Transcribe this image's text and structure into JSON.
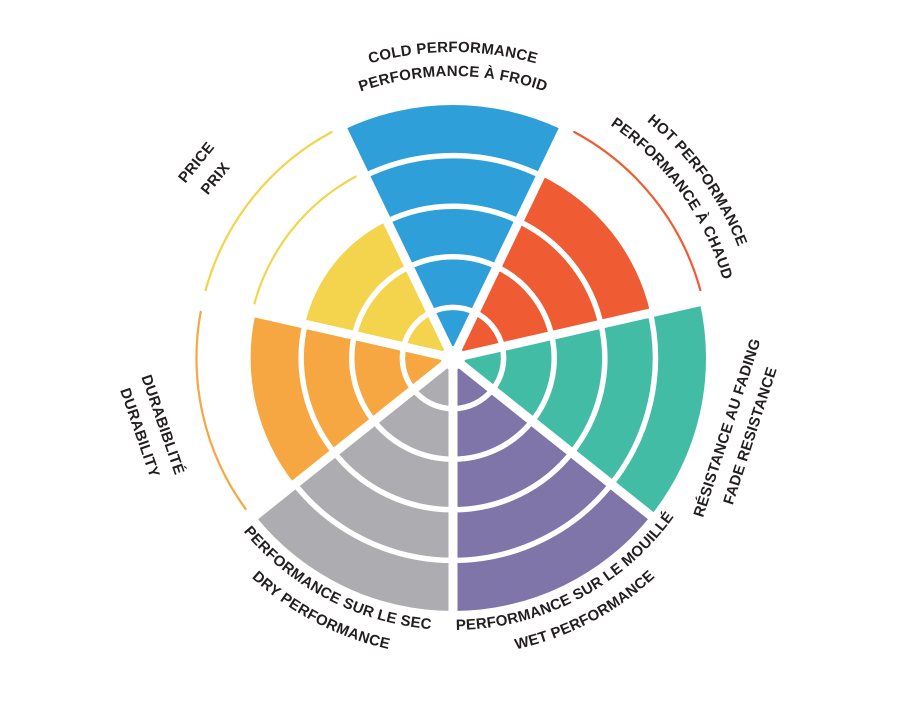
{
  "chart_data": {
    "type": "polar-wheel",
    "max_value": 5,
    "ring_count": 5,
    "background_color": "#FFFFFF",
    "divider_color": "#FFFFFF",
    "text_color": "#231F20",
    "legend_position": "around-wheel",
    "segments": [
      {
        "id": "cold",
        "labels": {
          "en": "COLD PERFORMANCE",
          "fr": "PERFORMANCE À FROID"
        },
        "value": 5,
        "color": "#2E9FD8"
      },
      {
        "id": "hot",
        "labels": {
          "en": "HOT PERFORMANCE",
          "fr": "PERFORMANCE À CHAUD"
        },
        "value": 4,
        "color": "#EF5B33"
      },
      {
        "id": "fade",
        "labels": {
          "en": "FADE RESISTANCE",
          "fr": "RÉSISTANCE AU FADING"
        },
        "value": 5,
        "color": "#43BCA6"
      },
      {
        "id": "wet",
        "labels": {
          "en": "WET PERFORMANCE",
          "fr": "PERFORMANCE SUR LE MOUILLÉ"
        },
        "value": 5,
        "color": "#7F75A8"
      },
      {
        "id": "dry",
        "labels": {
          "en": "DRY PERFORMANCE",
          "fr": "PERFORMANCE SUR LE SEC"
        },
        "value": 5,
        "color": "#ADADB1"
      },
      {
        "id": "durability",
        "labels": {
          "en": "DURABILITY",
          "fr": "DURABIBLITÉ"
        },
        "value": 4,
        "color": "#F6A742"
      },
      {
        "id": "price",
        "labels": {
          "en": "PRICE",
          "fr": "PRIX"
        },
        "value": 3,
        "color": "#F3D44C"
      }
    ]
  }
}
